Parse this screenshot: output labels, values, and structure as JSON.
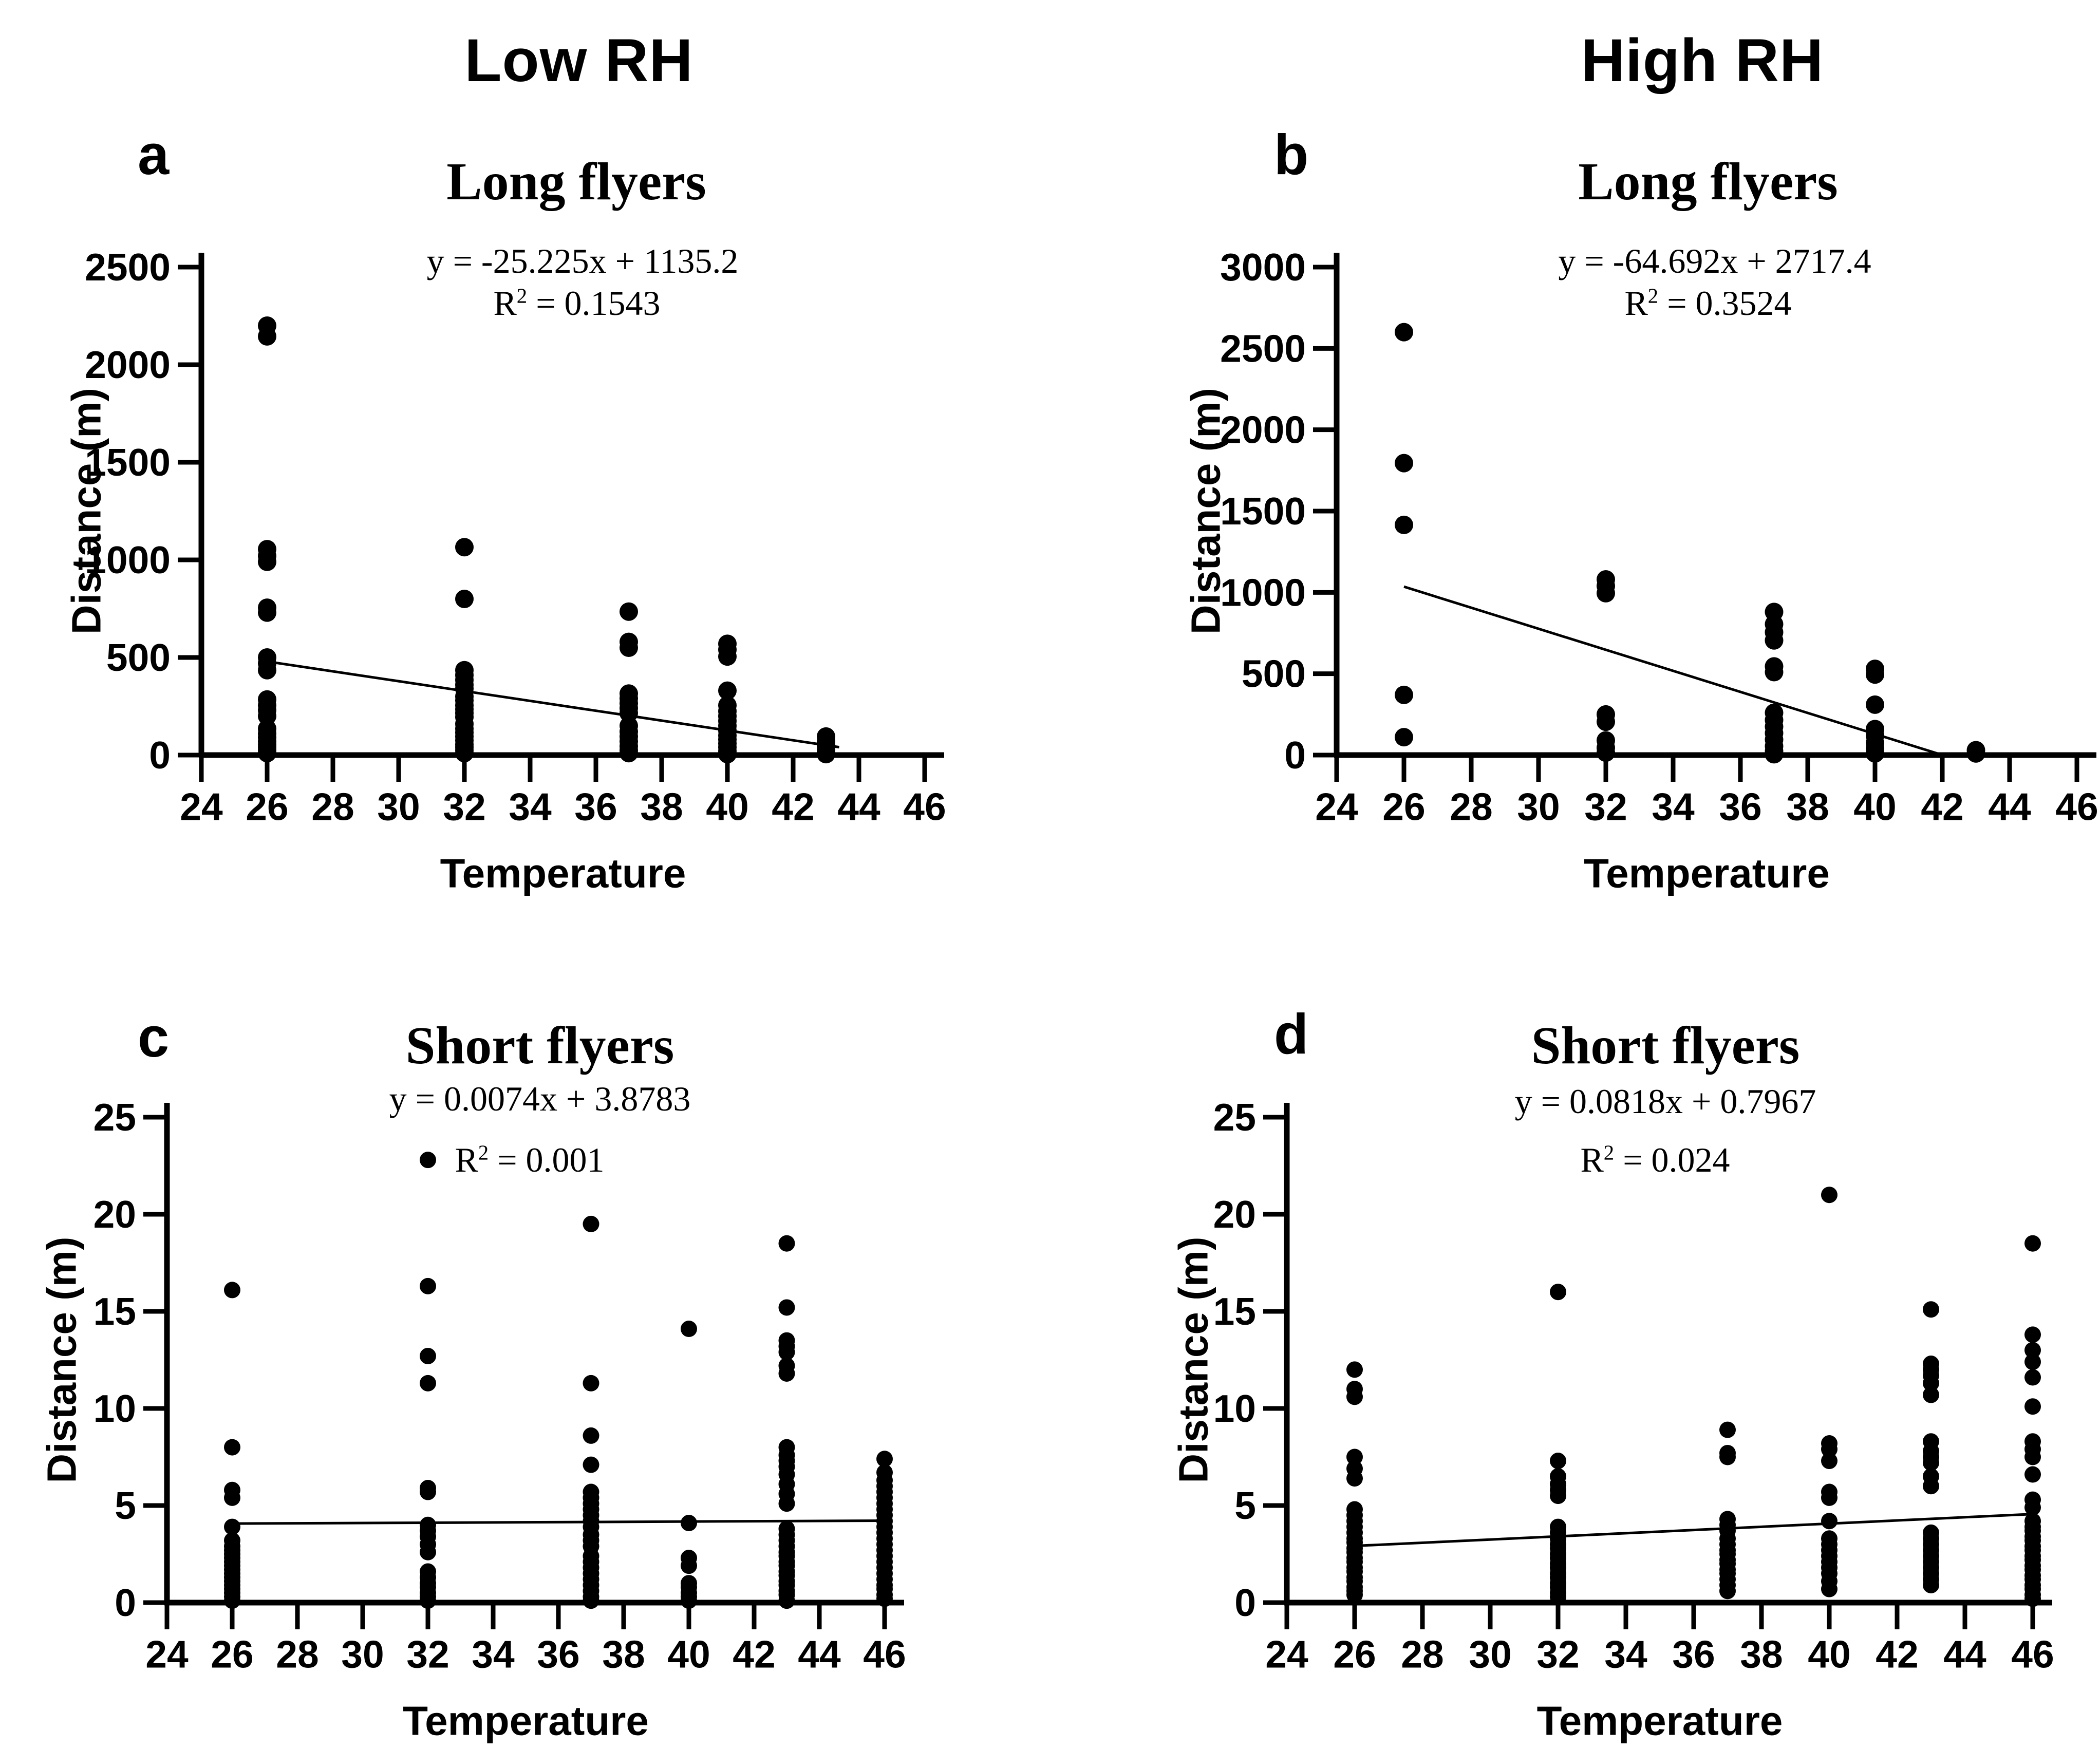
{
  "figure": {
    "background": "#ffffff",
    "marker_color": "#000000",
    "columns": [
      {
        "title": "Low RH"
      },
      {
        "title": "High RH"
      }
    ]
  },
  "chart_data": [
    {
      "id": "a",
      "type": "scatter",
      "letter": "a",
      "title": "Long flyers",
      "equation": "y = -25.225x + 1135.2",
      "r2": {
        "base": "R",
        "sup": "2",
        "rest": "= 0.1543"
      },
      "xlabel": "Temperature",
      "ylabel": "Distance (m)",
      "xlim": [
        24,
        46
      ],
      "ylim": [
        0,
        2500
      ],
      "xticks": [
        24,
        26,
        28,
        30,
        32,
        34,
        36,
        38,
        40,
        42,
        44,
        46
      ],
      "yticks": [
        0,
        500,
        1000,
        1500,
        2000,
        2500
      ],
      "grid": false,
      "legend": "none",
      "series": [
        {
          "x": 26,
          "values": [
            2200,
            2145,
            1055,
            1020,
            990,
            755,
            730,
            500,
            470,
            435,
            285,
            255,
            230,
            200,
            135,
            110,
            90,
            70,
            55,
            40,
            25,
            10
          ]
        },
        {
          "x": 32,
          "values": [
            1065,
            800,
            435,
            410,
            385,
            360,
            340,
            300,
            280,
            255,
            235,
            215,
            195,
            160,
            135,
            115,
            95,
            75,
            55,
            40,
            25,
            10
          ]
        },
        {
          "x": 37,
          "values": [
            735,
            580,
            550,
            315,
            290,
            265,
            240,
            215,
            150,
            120,
            95,
            70,
            45,
            25,
            10
          ]
        },
        {
          "x": 40,
          "values": [
            570,
            540,
            505,
            330,
            255,
            225,
            200,
            175,
            150,
            125,
            100,
            80,
            60,
            40,
            20,
            5
          ]
        },
        {
          "x": 43,
          "values": [
            95,
            70,
            50,
            30,
            15,
            5
          ]
        }
      ],
      "trendline": {
        "x1": 26,
        "y1": 479.4,
        "x2": 43.4,
        "y2": 40.4
      }
    },
    {
      "id": "b",
      "type": "scatter",
      "letter": "b",
      "title": "Long flyers",
      "equation": "y = -64.692x + 2717.4",
      "r2": {
        "base": "R",
        "sup": "2",
        "rest": "= 0.3524"
      },
      "xlabel": "Temperature",
      "ylabel": "Distance (m)",
      "xlim": [
        24,
        46
      ],
      "ylim": [
        0,
        3000
      ],
      "xticks": [
        24,
        26,
        28,
        30,
        32,
        34,
        36,
        38,
        40,
        42,
        44,
        46
      ],
      "yticks": [
        0,
        500,
        1000,
        1500,
        2000,
        2500,
        3000
      ],
      "grid": false,
      "legend": "none",
      "series": [
        {
          "x": 26,
          "values": [
            2600,
            1795,
            1415,
            370,
            110
          ]
        },
        {
          "x": 32,
          "values": [
            1080,
            1040,
            995,
            250,
            205,
            90,
            45,
            15
          ]
        },
        {
          "x": 37,
          "values": [
            880,
            805,
            755,
            705,
            545,
            510,
            260,
            215,
            175,
            135,
            95,
            55,
            25,
            5
          ]
        },
        {
          "x": 40,
          "values": [
            530,
            495,
            310,
            160,
            120,
            75,
            40,
            10
          ]
        },
        {
          "x": 43,
          "values": [
            30,
            10
          ]
        }
      ],
      "trendline": {
        "x1": 26,
        "y1": 1035.4,
        "x2": 42.0,
        "y2": 0.3
      }
    },
    {
      "id": "c",
      "type": "scatter",
      "letter": "c",
      "title": "Short flyers",
      "equation": "y = 0.0074x + 3.8783",
      "r2": {
        "base": "R",
        "sup": "2",
        "rest": "= 0.001"
      },
      "xlabel": "Temperature",
      "ylabel": "Distance (m)",
      "xlim": [
        24,
        46
      ],
      "ylim": [
        0,
        25
      ],
      "xticks": [
        24,
        26,
        28,
        30,
        32,
        34,
        36,
        38,
        40,
        42,
        44,
        46
      ],
      "yticks": [
        0,
        5,
        10,
        15,
        20,
        25
      ],
      "grid": false,
      "legend": "none",
      "series": [
        {
          "x": 26,
          "values": [
            16.1,
            8.0,
            5.8,
            5.4,
            3.9,
            3.2,
            2.9,
            2.7,
            2.5,
            2.3,
            2.1,
            1.9,
            1.7,
            1.5,
            1.3,
            1.1,
            0.9,
            0.7,
            0.5,
            0.3,
            0.1
          ]
        },
        {
          "x": 32,
          "values": [
            22.8,
            16.3,
            12.7,
            11.3,
            5.9,
            5.7,
            4.0,
            3.7,
            3.4,
            3.0,
            2.6,
            1.6,
            1.3,
            1.0,
            0.8,
            0.5,
            0.3,
            0.1
          ]
        },
        {
          "x": 37,
          "values": [
            19.5,
            11.3,
            8.6,
            7.1,
            5.7,
            5.4,
            5.1,
            4.8,
            4.5,
            4.2,
            3.9,
            3.5,
            3.2,
            2.9,
            2.4,
            2.1,
            1.8,
            1.5,
            1.2,
            0.9,
            0.6,
            0.3,
            0.1
          ]
        },
        {
          "x": 40,
          "values": [
            14.1,
            4.1,
            2.3,
            1.9,
            1.0,
            0.8,
            0.5,
            0.3,
            0.1
          ]
        },
        {
          "x": 43,
          "values": [
            18.5,
            15.2,
            13.5,
            13.2,
            12.9,
            12.2,
            11.8,
            8.0,
            7.6,
            7.3,
            7.0,
            6.6,
            6.1,
            5.6,
            5.1,
            3.8,
            3.5,
            3.2,
            2.9,
            2.6,
            2.4,
            2.1,
            1.9,
            1.6,
            1.4,
            1.1,
            0.9,
            0.6,
            0.4,
            0.1
          ]
        },
        {
          "x": 46,
          "values": [
            7.4,
            6.7,
            6.3,
            6.0,
            5.7,
            5.4,
            5.1,
            4.8,
            4.5,
            4.2,
            3.9,
            3.6,
            3.3,
            3.0,
            2.7,
            2.4,
            2.1,
            1.8,
            1.5,
            1.2,
            0.9,
            0.7,
            0.4,
            0.2
          ]
        }
      ],
      "trendline": {
        "x1": 26,
        "y1": 4.07,
        "x2": 46,
        "y2": 4.22
      }
    },
    {
      "id": "d",
      "type": "scatter",
      "letter": "d",
      "title": "Short flyers",
      "equation": "y = 0.0818x + 0.7967",
      "r2": {
        "base": "R",
        "sup": "2",
        "rest": "= 0.024"
      },
      "xlabel": "Temperature",
      "ylabel": "Distance (m)",
      "xlim": [
        24,
        46
      ],
      "ylim": [
        0,
        25
      ],
      "xticks": [
        24,
        26,
        28,
        30,
        32,
        34,
        36,
        38,
        40,
        42,
        44,
        46
      ],
      "yticks": [
        0,
        5,
        10,
        15,
        20,
        25
      ],
      "grid": false,
      "legend": "none",
      "series": [
        {
          "x": 26,
          "values": [
            12.0,
            11.0,
            10.6,
            7.5,
            6.9,
            6.4,
            4.8,
            4.5,
            4.2,
            3.9,
            3.6,
            3.3,
            3.1,
            2.8,
            2.6,
            2.3,
            2.1,
            1.8,
            1.6,
            1.3,
            1.1,
            0.8,
            0.6,
            0.4
          ]
        },
        {
          "x": 32,
          "values": [
            16.0,
            7.3,
            6.5,
            6.1,
            5.8,
            5.5,
            3.9,
            3.6,
            3.3,
            3.0,
            2.8,
            2.5,
            2.3,
            2.0,
            1.8,
            1.5,
            1.3,
            1.0,
            0.8,
            0.5,
            0.3
          ]
        },
        {
          "x": 37,
          "values": [
            8.9,
            7.7,
            7.5,
            4.3,
            4.0,
            3.7,
            3.3,
            3.0,
            2.7,
            2.5,
            2.2,
            2.0,
            1.7,
            1.5,
            1.2,
            0.9,
            0.6
          ]
        },
        {
          "x": 40,
          "values": [
            21.0,
            8.2,
            7.9,
            7.3,
            5.7,
            5.4,
            4.2,
            3.3,
            3.0,
            2.7,
            2.4,
            2.1,
            1.8,
            1.5,
            1.1,
            0.7
          ]
        },
        {
          "x": 43,
          "values": [
            15.1,
            12.3,
            12.0,
            11.7,
            11.3,
            10.7,
            8.3,
            7.8,
            7.5,
            7.2,
            6.5,
            6.0,
            3.6,
            3.3,
            3.0,
            2.7,
            2.4,
            2.1,
            1.8,
            1.5,
            1.2,
            0.9
          ]
        },
        {
          "x": 46,
          "values": [
            18.5,
            13.8,
            13.0,
            12.4,
            11.6,
            10.1,
            8.3,
            7.9,
            7.5,
            6.6,
            5.3,
            4.9,
            4.2,
            3.9,
            3.7,
            3.4,
            3.2,
            2.9,
            2.7,
            2.4,
            2.2,
            1.9,
            1.7,
            1.4,
            1.2,
            0.9,
            0.7,
            0.4,
            0.2
          ]
        }
      ],
      "trendline": {
        "x1": 26,
        "y1": 2.92,
        "x2": 46,
        "y2": 4.56
      }
    }
  ]
}
